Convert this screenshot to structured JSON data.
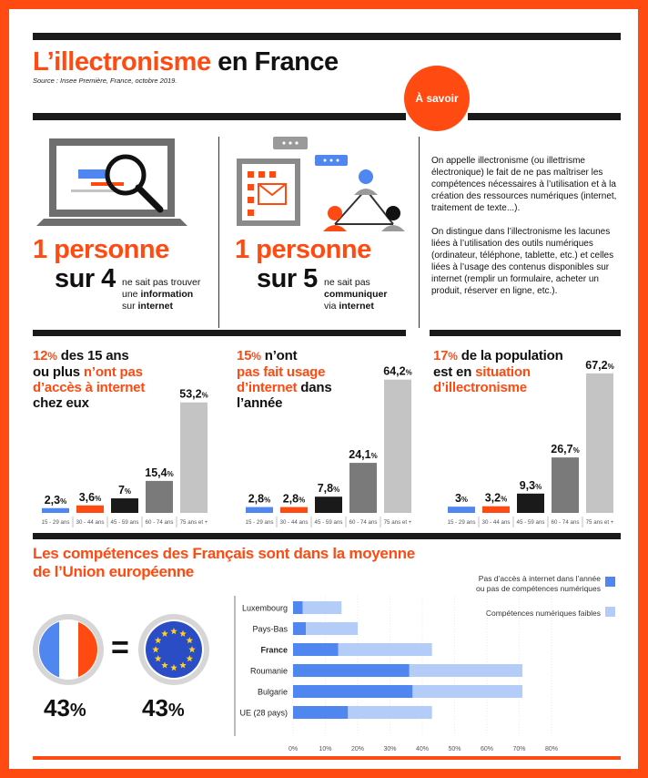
{
  "header": {
    "title_part1": "L’illectronisme",
    "title_part2": "en France",
    "source": "Source : Insee Première, France, octobre 2019.",
    "savoir_badge": "À savoir"
  },
  "info": {
    "left": {
      "line1": "1 personne",
      "line2": "sur 4",
      "desc_1": "ne sait pas trouver",
      "desc_2_a": "une ",
      "desc_2_b": "information",
      "desc_3": "sur internet"
    },
    "middle": {
      "line1": "1 personne",
      "line2": "sur 5",
      "desc_1": "ne sait pas",
      "desc_2": "communiquer",
      "desc_3_a": "via ",
      "desc_3_b": "internet"
    },
    "definition_p1": "On appelle illectronisme (ou illettrisme électronique) le fait de ne pas maîtriser les compétences nécessaires à l’utilisation et à la création des ressources numériques (internet, traitement de texte...).",
    "definition_p2": "On distingue dans l’illectronisme les lacunes liées à l’utilisation des outils numériques (ordinateur, téléphone, tablette, etc.) et celles liées à l’usage des contenus disponibles sur internet (remplir un formulaire, acheter un produit, réserver en ligne, etc.)."
  },
  "stats": [
    {
      "pct": "12",
      "unit": "%",
      "line1_rest": " des 15 ans",
      "line2_a": "ou plus ",
      "line2_b": "n’ont pas",
      "line3": "d’accès à internet",
      "line4": "chez eux"
    },
    {
      "pct": "15",
      "unit": "%",
      "line1_rest": " n’ont",
      "line2": "pas fait usage",
      "line3_a": "d’internet",
      "line3_b": " dans",
      "line4": "l’année"
    },
    {
      "pct": "17",
      "unit": "%",
      "line1_rest": " de la population",
      "line2_a": "est en ",
      "line2_b": "situation",
      "line3": "d’illectronisme"
    }
  ],
  "section2": {
    "title_line1": "Les compétences des Français sont dans la moyenne",
    "title_line2": "de l’Union européenne",
    "equals": "=",
    "france_pct": "43",
    "eu_pct": "43",
    "pct_sign": "%"
  },
  "colors": {
    "accent": "#FF4A12",
    "blue": "#4F86F0",
    "light_blue": "#B4CDF8",
    "age_15_29": "#4F86F0",
    "age_30_44": "#FF4A12",
    "age_45_59": "#1a1a1a",
    "age_60_74": "#7a7a7a",
    "age_75": "#c4c4c4"
  },
  "chart_data": [
    {
      "type": "bar",
      "title": "12% des 15 ans ou plus n’ont pas d’accès à internet chez eux",
      "categories": [
        "15 - 29 ans",
        "30 - 44 ans",
        "45 - 59 ans",
        "60 - 74 ans",
        "75 ans et +"
      ],
      "values": [
        2.3,
        3.6,
        7,
        15.4,
        53.2
      ],
      "labels": [
        "2,3",
        "3,6",
        "7",
        "15,4",
        "53,2"
      ],
      "ylim": [
        0,
        68
      ]
    },
    {
      "type": "bar",
      "title": "15% n’ont pas fait usage d’internet dans l’année",
      "categories": [
        "15 - 29 ans",
        "30 - 44 ans",
        "45 - 59 ans",
        "60 - 74 ans",
        "75 ans et +"
      ],
      "values": [
        2.8,
        2.8,
        7.8,
        24.1,
        64.2
      ],
      "labels": [
        "2,8",
        "2,8",
        "7,8",
        "24,1",
        "64,2"
      ],
      "ylim": [
        0,
        68
      ]
    },
    {
      "type": "bar",
      "title": "17% de la population est en situation d’illectronisme",
      "categories": [
        "15 - 29 ans",
        "30 - 44 ans",
        "45 - 59 ans",
        "60 - 74 ans",
        "75 ans et +"
      ],
      "values": [
        3,
        3.2,
        9.3,
        26.7,
        67.2
      ],
      "labels": [
        "3",
        "3,2",
        "9,3",
        "26,7",
        "67,2"
      ],
      "ylim": [
        0,
        68
      ]
    },
    {
      "type": "bar",
      "orientation": "horizontal",
      "stacked": true,
      "categories": [
        "Luxembourg",
        "Pays-Bas",
        "France",
        "Roumanie",
        "Bulgarie",
        "UE (28 pays)"
      ],
      "series": [
        {
          "name": "Pas d’accès à internet dans l’année ou pas de compétences numériques",
          "values": [
            3,
            4,
            14,
            36,
            37,
            17
          ]
        },
        {
          "name": "Compétences numériques faibles",
          "values": [
            12,
            16,
            29,
            35,
            34,
            26
          ]
        }
      ],
      "legend": [
        "Pas d’accès à internet dans l’année",
        "ou pas de compétences numériques",
        "Compétences numériques faibles"
      ],
      "xticks": [
        "0%",
        "10%",
        "20%",
        "30%",
        "40%",
        "50%",
        "60%",
        "70%",
        "80%"
      ],
      "xlim": [
        0,
        80
      ]
    }
  ]
}
